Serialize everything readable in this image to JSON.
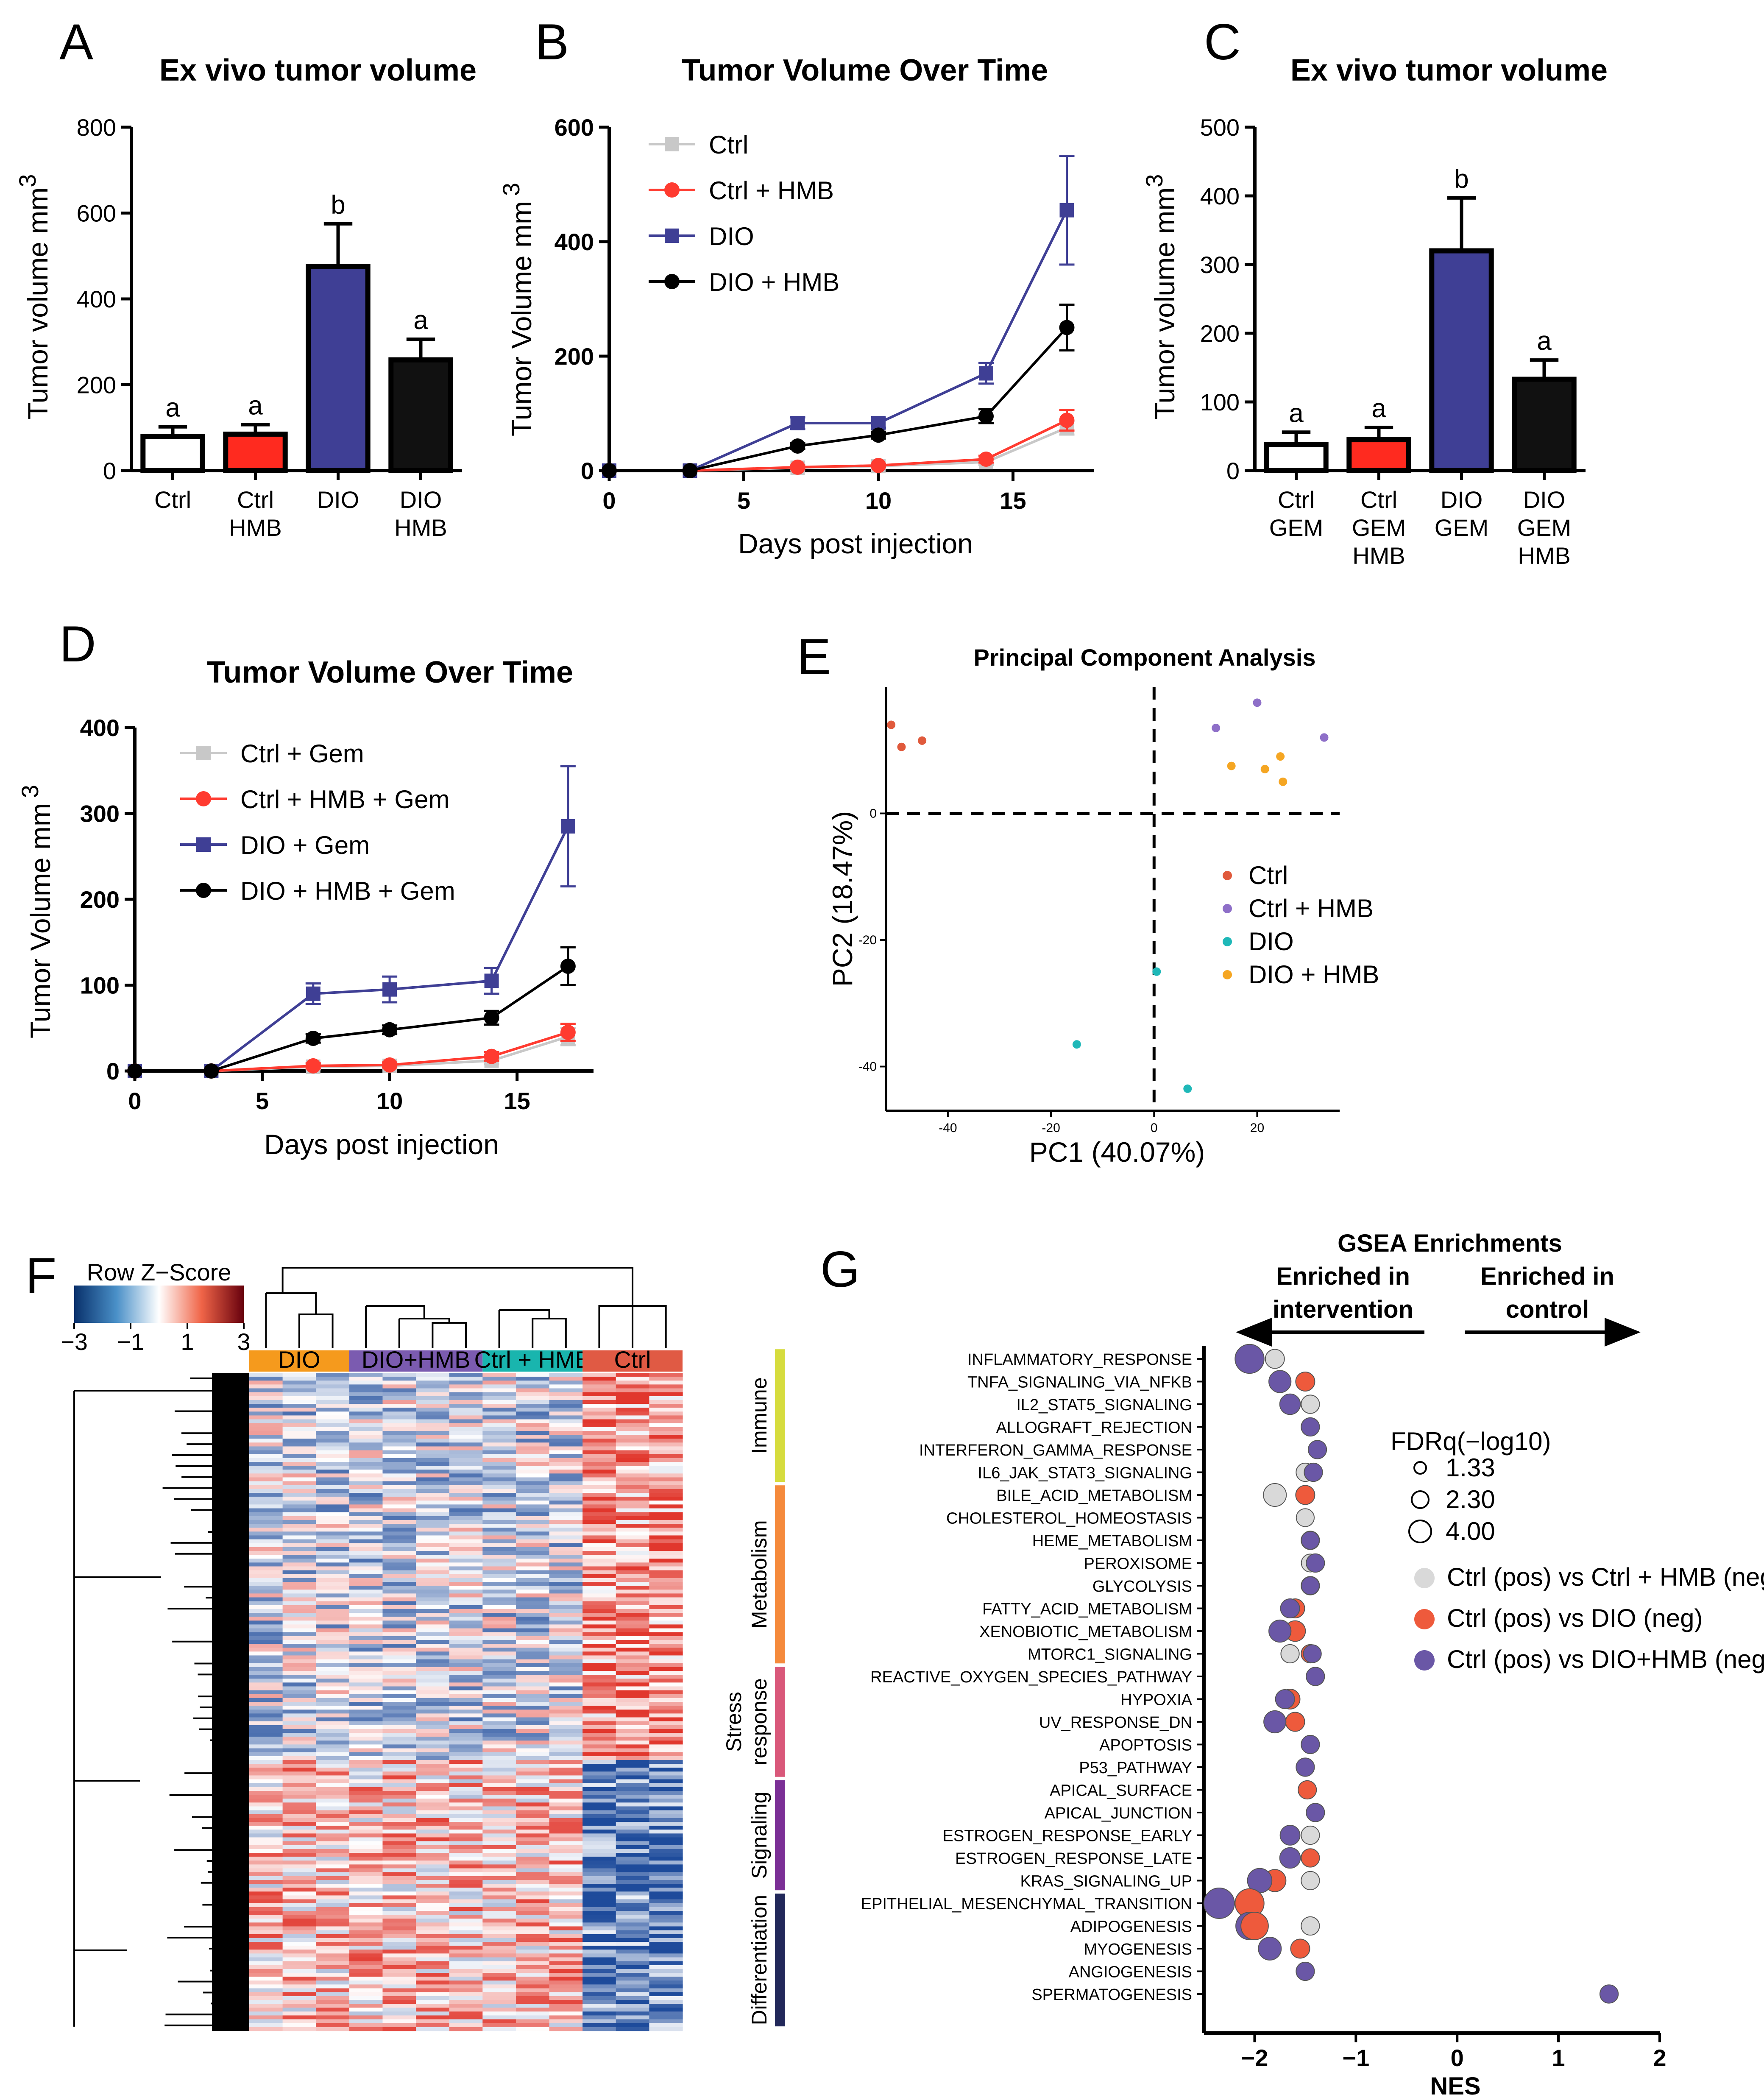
{
  "panel_letters": [
    "A",
    "B",
    "C",
    "D",
    "E",
    "F",
    "G"
  ],
  "chart_data": [
    {
      "id": "A",
      "type": "bar",
      "title": "Ex vivo tumor volume",
      "ylabel": "Tumor volume mm",
      "ylabel_sup": "3",
      "ylim": [
        0,
        800
      ],
      "yticks": [
        "0",
        "200",
        "400",
        "600",
        "800"
      ],
      "categories": [
        [
          "Ctrl"
        ],
        [
          "Ctrl",
          "HMB"
        ],
        [
          "DIO"
        ],
        [
          "DIO",
          "HMB"
        ]
      ],
      "values": [
        80,
        85,
        475,
        258
      ],
      "errors": [
        22,
        22,
        100,
        48
      ],
      "letters": [
        "a",
        "a",
        "b",
        "a"
      ],
      "fill_colors": [
        "#ffffff",
        "#ff2a1f",
        "#3f3f95",
        "#111111"
      ]
    },
    {
      "id": "B",
      "type": "line",
      "title": "Tumor Volume Over Time",
      "xlabel": "Days post injection",
      "ylabel": "Tumor Volume mm",
      "ylabel_sup": "3",
      "xlim": [
        0,
        18
      ],
      "ylim": [
        0,
        600
      ],
      "xticks": [
        "0",
        "5",
        "10",
        "15"
      ],
      "yticks": [
        "0",
        "200",
        "400",
        "600"
      ],
      "x": [
        0,
        3,
        7,
        10,
        14,
        17
      ],
      "series": [
        {
          "name": "Ctrl",
          "marker": "square",
          "color": "#c8c8c8",
          "values": [
            0,
            0,
            5,
            8,
            15,
            75
          ],
          "errors": [
            0,
            0,
            3,
            3,
            5,
            12
          ]
        },
        {
          "name": "Ctrl + HMB",
          "marker": "circle",
          "color": "#ff3b30",
          "values": [
            0,
            0,
            6,
            9,
            20,
            88
          ],
          "errors": [
            0,
            0,
            3,
            3,
            6,
            18
          ]
        },
        {
          "name": "DIO",
          "marker": "square",
          "color": "#3f3f95",
          "values": [
            0,
            0,
            83,
            83,
            170,
            455
          ],
          "errors": [
            0,
            0,
            10,
            8,
            18,
            95
          ]
        },
        {
          "name": "DIO + HMB",
          "marker": "circle",
          "color": "#000000",
          "values": [
            0,
            0,
            43,
            62,
            95,
            250
          ],
          "errors": [
            0,
            0,
            5,
            6,
            12,
            40
          ]
        }
      ]
    },
    {
      "id": "C",
      "type": "bar",
      "title": "Ex vivo tumor volume",
      "ylabel": "Tumor volume mm",
      "ylabel_sup": "3",
      "ylim": [
        0,
        500
      ],
      "yticks": [
        "0",
        "100",
        "200",
        "300",
        "400",
        "500"
      ],
      "categories": [
        [
          "Ctrl",
          "GEM"
        ],
        [
          "Ctrl",
          "GEM",
          "HMB"
        ],
        [
          "DIO",
          "GEM"
        ],
        [
          "DIO",
          "GEM",
          "HMB"
        ]
      ],
      "values": [
        38,
        45,
        320,
        133
      ],
      "errors": [
        18,
        18,
        77,
        28
      ],
      "letters": [
        "a",
        "a",
        "b",
        "a"
      ],
      "fill_colors": [
        "#ffffff",
        "#ff2a1f",
        "#3f3f95",
        "#111111"
      ]
    },
    {
      "id": "D",
      "type": "line",
      "title": "Tumor Volume Over Time",
      "xlabel": "Days post injection",
      "ylabel": "Tumor Volume mm",
      "ylabel_sup": "3",
      "xlim": [
        0,
        18
      ],
      "ylim": [
        0,
        400
      ],
      "xticks": [
        "0",
        "5",
        "10",
        "15"
      ],
      "yticks": [
        "0",
        "100",
        "200",
        "300",
        "400"
      ],
      "x": [
        0,
        3,
        7,
        10,
        14,
        17
      ],
      "series": [
        {
          "name": "Ctrl + Gem",
          "marker": "square",
          "color": "#c8c8c8",
          "values": [
            0,
            0,
            5,
            6,
            12,
            40
          ],
          "errors": [
            0,
            0,
            3,
            3,
            4,
            10
          ]
        },
        {
          "name": "Ctrl + HMB + Gem",
          "marker": "circle",
          "color": "#ff3b30",
          "values": [
            0,
            0,
            6,
            7,
            17,
            45
          ],
          "errors": [
            0,
            0,
            3,
            3,
            5,
            10
          ]
        },
        {
          "name": "DIO + Gem",
          "marker": "square",
          "color": "#3f3f95",
          "values": [
            0,
            0,
            90,
            95,
            105,
            285
          ],
          "errors": [
            0,
            0,
            12,
            15,
            15,
            70
          ]
        },
        {
          "name": "DIO + HMB + Gem",
          "marker": "circle",
          "color": "#000000",
          "values": [
            0,
            0,
            38,
            48,
            62,
            122
          ],
          "errors": [
            0,
            0,
            5,
            5,
            8,
            22
          ]
        }
      ]
    },
    {
      "id": "E",
      "type": "scatter",
      "title": "Principal Component Analysis",
      "xlabel": "PC1 (40.07%)",
      "ylabel": "PC2 (18.47%)",
      "xlim": [
        -52,
        36
      ],
      "ylim": [
        -47,
        20
      ],
      "xticks": [
        "-40",
        "-20",
        "0",
        "20"
      ],
      "yticks": [
        "0",
        "-20",
        "-40"
      ],
      "series": [
        {
          "name": "Ctrl",
          "color": "#e05a3c",
          "points": [
            [
              -51,
              14
            ],
            [
              -49,
              10.5
            ],
            [
              -45,
              11.5
            ]
          ]
        },
        {
          "name": "Ctrl + HMB",
          "color": "#8e6fc8",
          "points": [
            [
              20,
              17.5
            ],
            [
              12,
              13.5
            ],
            [
              33,
              12
            ]
          ]
        },
        {
          "name": "DIO",
          "color": "#1fb8b8",
          "points": [
            [
              0.5,
              -25
            ],
            [
              -15,
              -36.5
            ],
            [
              6.5,
              -43.5
            ]
          ]
        },
        {
          "name": "DIO + HMB",
          "color": "#f5a623",
          "points": [
            [
              15,
              7.5
            ],
            [
              21.5,
              7
            ],
            [
              25,
              5
            ],
            [
              24.5,
              9
            ]
          ]
        }
      ]
    },
    {
      "id": "F",
      "type": "heatmap",
      "key_title": "Row Z−Score",
      "key_ticks": [
        "−3",
        "−1",
        "1",
        "3"
      ],
      "groups": [
        {
          "name": "DIO",
          "color": "#f59a1d",
          "samples": 3
        },
        {
          "name": "DIO+HMB",
          "color": "#7b5bb0",
          "samples": 4
        },
        {
          "name": "Ctrl + HMB",
          "color": "#19b5ae",
          "samples": 3
        },
        {
          "name": "Ctrl",
          "color": "#e05a44",
          "samples": 3
        }
      ]
    },
    {
      "id": "G",
      "type": "scatter",
      "title": "GSEA Enrichments",
      "left_note": "Enriched in intervention",
      "right_note": "Enriched in control",
      "xlabel": "NES",
      "xlim": [
        -2.5,
        2
      ],
      "xticks": [
        "−2",
        "−1",
        "0",
        "1",
        "2"
      ],
      "categories": [
        {
          "name": "Immune",
          "color": "#d6dc3e",
          "count": 6
        },
        {
          "name": "Metabolism",
          "color": "#f58a3c",
          "count": 8
        },
        {
          "name": "Stress response",
          "color": "#d9587a",
          "count": 5
        },
        {
          "name": "Signaling",
          "color": "#7b2f96",
          "count": 5
        },
        {
          "name": "Differentiation",
          "color": "#22285a",
          "count": 6
        }
      ],
      "size_legend_title": "FDRq(−log10)",
      "size_legend": [
        "1.33",
        "2.30",
        "4.00"
      ],
      "series": [
        {
          "name": "Ctrl (pos) vs Ctrl + HMB (neg)",
          "color": "#d9d9d9"
        },
        {
          "name": "Ctrl (pos) vs DIO (neg)",
          "color": "#ee5a3c"
        },
        {
          "name": "Ctrl (pos) vs DIO+HMB (neg)",
          "color": "#6a57a6"
        }
      ],
      "pathways": [
        {
          "name": "INFLAMMATORY_RESPONSE",
          "points": [
            [
              0,
              -1.8,
              1.5
            ],
            [
              2,
              -2.05,
              2.8
            ]
          ]
        },
        {
          "name": "TNFA_SIGNALING_VIA_NFKB",
          "points": [
            [
              0,
              -1.75,
              1.6
            ],
            [
              1,
              -1.5,
              1.5
            ],
            [
              2,
              -1.75,
              1.9
            ]
          ]
        },
        {
          "name": "IL2_STAT5_SIGNALING",
          "points": [
            [
              0,
              -1.45,
              1.4
            ],
            [
              2,
              -1.65,
              1.7
            ]
          ]
        },
        {
          "name": "ALLOGRAFT_REJECTION",
          "points": [
            [
              2,
              -1.45,
              1.4
            ]
          ]
        },
        {
          "name": "INTERFERON_GAMMA_RESPONSE",
          "points": [
            [
              2,
              -1.38,
              1.4
            ]
          ]
        },
        {
          "name": "IL6_JAK_STAT3_SIGNALING",
          "points": [
            [
              0,
              -1.5,
              1.4
            ],
            [
              2,
              -1.42,
              1.4
            ]
          ]
        },
        {
          "name": "BILE_ACID_METABOLISM",
          "points": [
            [
              0,
              -1.8,
              2.0
            ],
            [
              1,
              -1.5,
              1.5
            ]
          ]
        },
        {
          "name": "CHOLESTEROL_HOMEOSTASIS",
          "points": [
            [
              0,
              -1.5,
              1.35
            ]
          ]
        },
        {
          "name": "HEME_METABOLISM",
          "points": [
            [
              1,
              -1.45,
              1.4
            ],
            [
              2,
              -1.45,
              1.35
            ]
          ]
        },
        {
          "name": "PEROXISOME",
          "points": [
            [
              0,
              -1.45,
              1.35
            ],
            [
              2,
              -1.4,
              1.4
            ]
          ]
        },
        {
          "name": "GLYCOLYSIS",
          "points": [
            [
              1,
              -1.45,
              1.4
            ],
            [
              2,
              -1.45,
              1.35
            ]
          ]
        },
        {
          "name": "FATTY_ACID_METABOLISM",
          "points": [
            [
              1,
              -1.6,
              1.5
            ],
            [
              2,
              -1.65,
              1.5
            ]
          ]
        },
        {
          "name": "XENOBIOTIC_METABOLISM",
          "points": [
            [
              1,
              -1.6,
              1.7
            ],
            [
              2,
              -1.75,
              1.9
            ]
          ]
        },
        {
          "name": "MTORC1_SIGNALING",
          "points": [
            [
              0,
              -1.65,
              1.4
            ],
            [
              1,
              -1.45,
              1.4
            ],
            [
              2,
              -1.43,
              1.35
            ]
          ]
        },
        {
          "name": "REACTIVE_OXYGEN_SPECIES_PATHWAY",
          "points": [
            [
              2,
              -1.4,
              1.4
            ]
          ]
        },
        {
          "name": "HYPOXIA",
          "points": [
            [
              1,
              -1.65,
              1.6
            ],
            [
              2,
              -1.7,
              1.5
            ]
          ]
        },
        {
          "name": "UV_RESPONSE_DN",
          "points": [
            [
              1,
              -1.6,
              1.5
            ],
            [
              2,
              -1.8,
              1.9
            ]
          ]
        },
        {
          "name": "APOPTOSIS",
          "points": [
            [
              2,
              -1.45,
              1.4
            ]
          ]
        },
        {
          "name": "P53_PATHWAY",
          "points": [
            [
              2,
              -1.5,
              1.4
            ]
          ]
        },
        {
          "name": "APICAL_SURFACE",
          "points": [
            [
              1,
              -1.48,
              1.4
            ]
          ]
        },
        {
          "name": "APICAL_JUNCTION",
          "points": [
            [
              2,
              -1.4,
              1.4
            ]
          ]
        },
        {
          "name": "ESTROGEN_RESPONSE_EARLY",
          "points": [
            [
              0,
              -1.45,
              1.4
            ],
            [
              2,
              -1.65,
              1.6
            ]
          ]
        },
        {
          "name": "ESTROGEN_RESPONSE_LATE",
          "points": [
            [
              1,
              -1.45,
              1.4
            ],
            [
              2,
              -1.65,
              1.7
            ]
          ]
        },
        {
          "name": "KRAS_SIGNALING_UP",
          "points": [
            [
              0,
              -1.45,
              1.4
            ],
            [
              1,
              -1.8,
              1.9
            ],
            [
              2,
              -1.95,
              2.2
            ]
          ]
        },
        {
          "name": "EPITHELIAL_MESENCHYMAL_TRANSITION",
          "points": [
            [
              2,
              -2.35,
              3.0
            ],
            [
              1,
              -2.05,
              2.8
            ]
          ]
        },
        {
          "name": "ADIPOGENESIS",
          "points": [
            [
              0,
              -1.45,
              1.4
            ],
            [
              2,
              -2.05,
              2.6
            ],
            [
              1,
              -2.0,
              2.6
            ]
          ]
        },
        {
          "name": "MYOGENESIS",
          "points": [
            [
              1,
              -1.55,
              1.5
            ],
            [
              2,
              -1.85,
              2.0
            ]
          ]
        },
        {
          "name": "ANGIOGENESIS",
          "points": [
            [
              2,
              -1.5,
              1.4
            ]
          ]
        },
        {
          "name": "SPERMATOGENESIS",
          "points": [
            [
              2,
              1.5,
              1.4
            ]
          ]
        }
      ]
    }
  ]
}
